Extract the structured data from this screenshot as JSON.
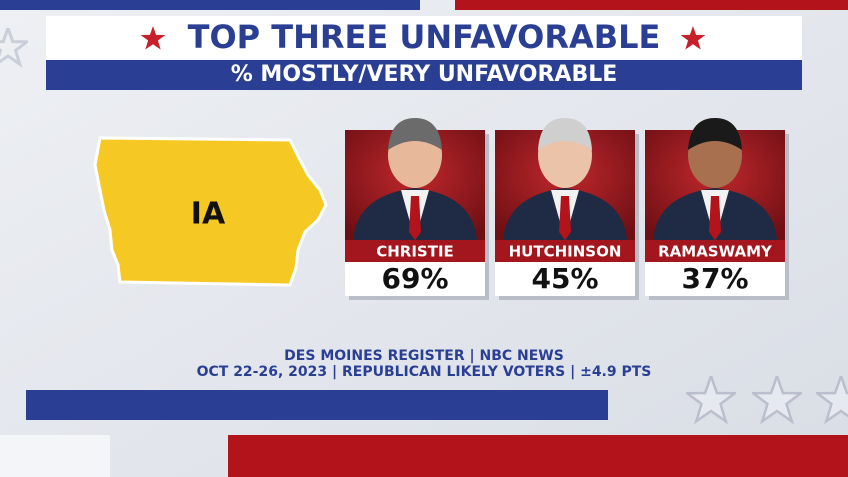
{
  "header": {
    "title": "TOP THREE UNFAVORABLE",
    "subtitle": "% MOSTLY/VERY UNFAVORABLE"
  },
  "map": {
    "label": "IA"
  },
  "candidates": [
    {
      "name": "CHRISTIE",
      "value": "69%"
    },
    {
      "name": "HUTCHINSON",
      "value": "45%"
    },
    {
      "name": "RAMASWAMY",
      "value": "37%"
    }
  ],
  "source": {
    "line1": "DES MOINES REGISTER | NBC NEWS",
    "line2": "OCT 22-26, 2023 | REPUBLICAN LIKELY VOTERS | ±4.9 PTS"
  }
}
